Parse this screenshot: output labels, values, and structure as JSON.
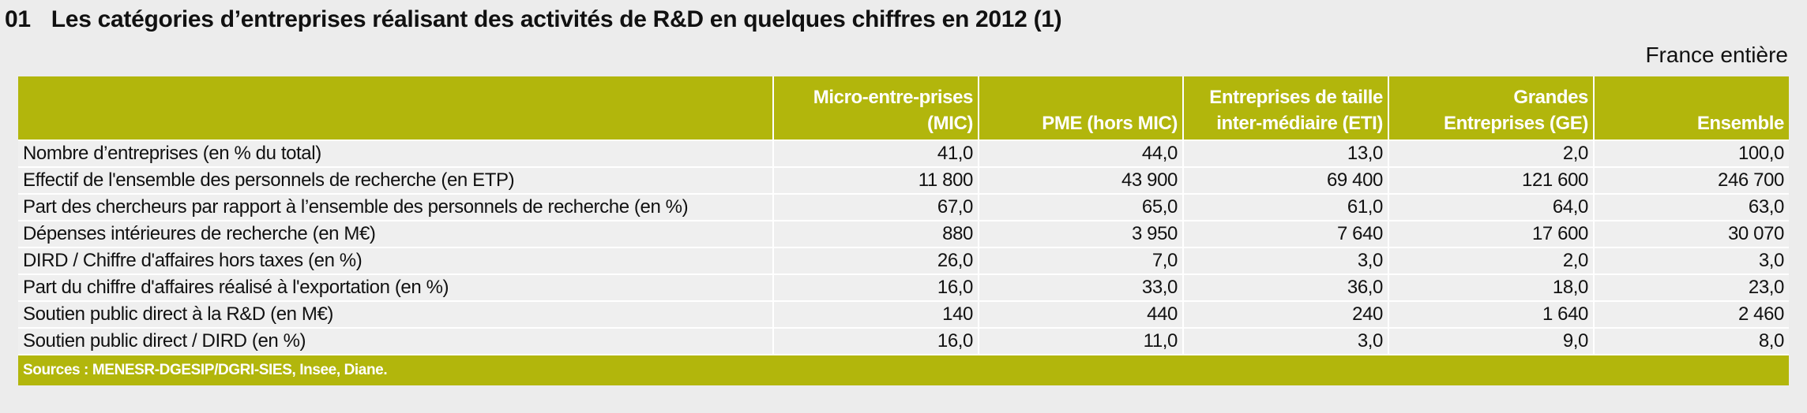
{
  "header": {
    "number": "01",
    "title": "Les catégories d’entreprises réalisant des activités de R&D en quelques chiffres en 2012 (1)",
    "scope": "France entière"
  },
  "table": {
    "columns": [
      [
        "Micro-entre-prises",
        "(MIC)"
      ],
      [
        "PME (hors MIC)"
      ],
      [
        "Entreprises de taille",
        "inter-médiaire (ETI)"
      ],
      [
        "Grandes",
        "Entreprises (GE)"
      ],
      [
        "Ensemble"
      ]
    ],
    "rows": [
      [
        "Nombre d’entreprises (en % du total)",
        "41,0",
        "44,0",
        "13,0",
        "2,0",
        "100,0"
      ],
      [
        "Effectif de l'ensemble des personnels de recherche (en ETP)",
        "11 800",
        "43 900",
        "69 400",
        "121 600",
        "246 700"
      ],
      [
        "Part des chercheurs par rapport à l’ensemble des personnels de recherche (en %)",
        "67,0",
        "65,0",
        "61,0",
        "64,0",
        "63,0"
      ],
      [
        "Dépenses intérieures de recherche (en M€)",
        "880",
        "3 950",
        "7 640",
        "17 600",
        "30 070"
      ],
      [
        "DIRD / Chiffre d'affaires hors taxes (en %)",
        "26,0",
        "7,0",
        "3,0",
        "2,0",
        "3,0"
      ],
      [
        "Part du chiffre d'affaires réalisé à l'exportation (en %)",
        "16,0",
        "33,0",
        "36,0",
        "18,0",
        "23,0"
      ],
      [
        "Soutien public direct à la R&D (en M€)",
        "140",
        "440",
        "240",
        "1 640",
        "2 460"
      ],
      [
        "Soutien public direct / DIRD (en %)",
        "16,0",
        "11,0",
        "3,0",
        "9,0",
        "8,0"
      ]
    ],
    "source": "Sources : MENESR-DGESIP/DGRI-SIES, Insee, Diane."
  }
}
